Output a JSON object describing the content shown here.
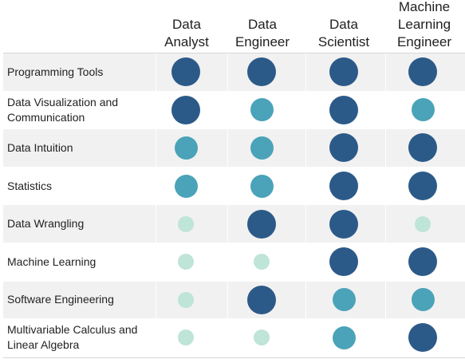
{
  "columns": [
    {
      "label": "Data\nAnalyst"
    },
    {
      "label": "Data\nEngineer"
    },
    {
      "label": "Data\nScientist"
    },
    {
      "label": "Machine\nLearning\nEngineer"
    }
  ],
  "levels": {
    "high": {
      "color": "#2c5a88"
    },
    "medium": {
      "color": "#4aa3b8"
    },
    "low": {
      "color": "#bfe4d8"
    }
  },
  "rows": [
    {
      "label": "Programming Tools",
      "values": [
        "high",
        "high",
        "high",
        "high"
      ]
    },
    {
      "label": "Data Visualization and\nCommunication",
      "values": [
        "high",
        "medium",
        "high",
        "medium"
      ]
    },
    {
      "label": "Data Intuition",
      "values": [
        "medium",
        "medium",
        "high",
        "high"
      ]
    },
    {
      "label": "Statistics",
      "values": [
        "medium",
        "medium",
        "high",
        "high"
      ]
    },
    {
      "label": "Data Wrangling",
      "values": [
        "low",
        "high",
        "high",
        "low"
      ]
    },
    {
      "label": "Machine Learning",
      "values": [
        "low",
        "low",
        "high",
        "high"
      ]
    },
    {
      "label": "Software Engineering",
      "values": [
        "low",
        "high",
        "medium",
        "medium"
      ]
    },
    {
      "label": "Multivariable Calculus and\nLinear Algebra",
      "values": [
        "low",
        "low",
        "medium",
        "high"
      ]
    }
  ]
}
